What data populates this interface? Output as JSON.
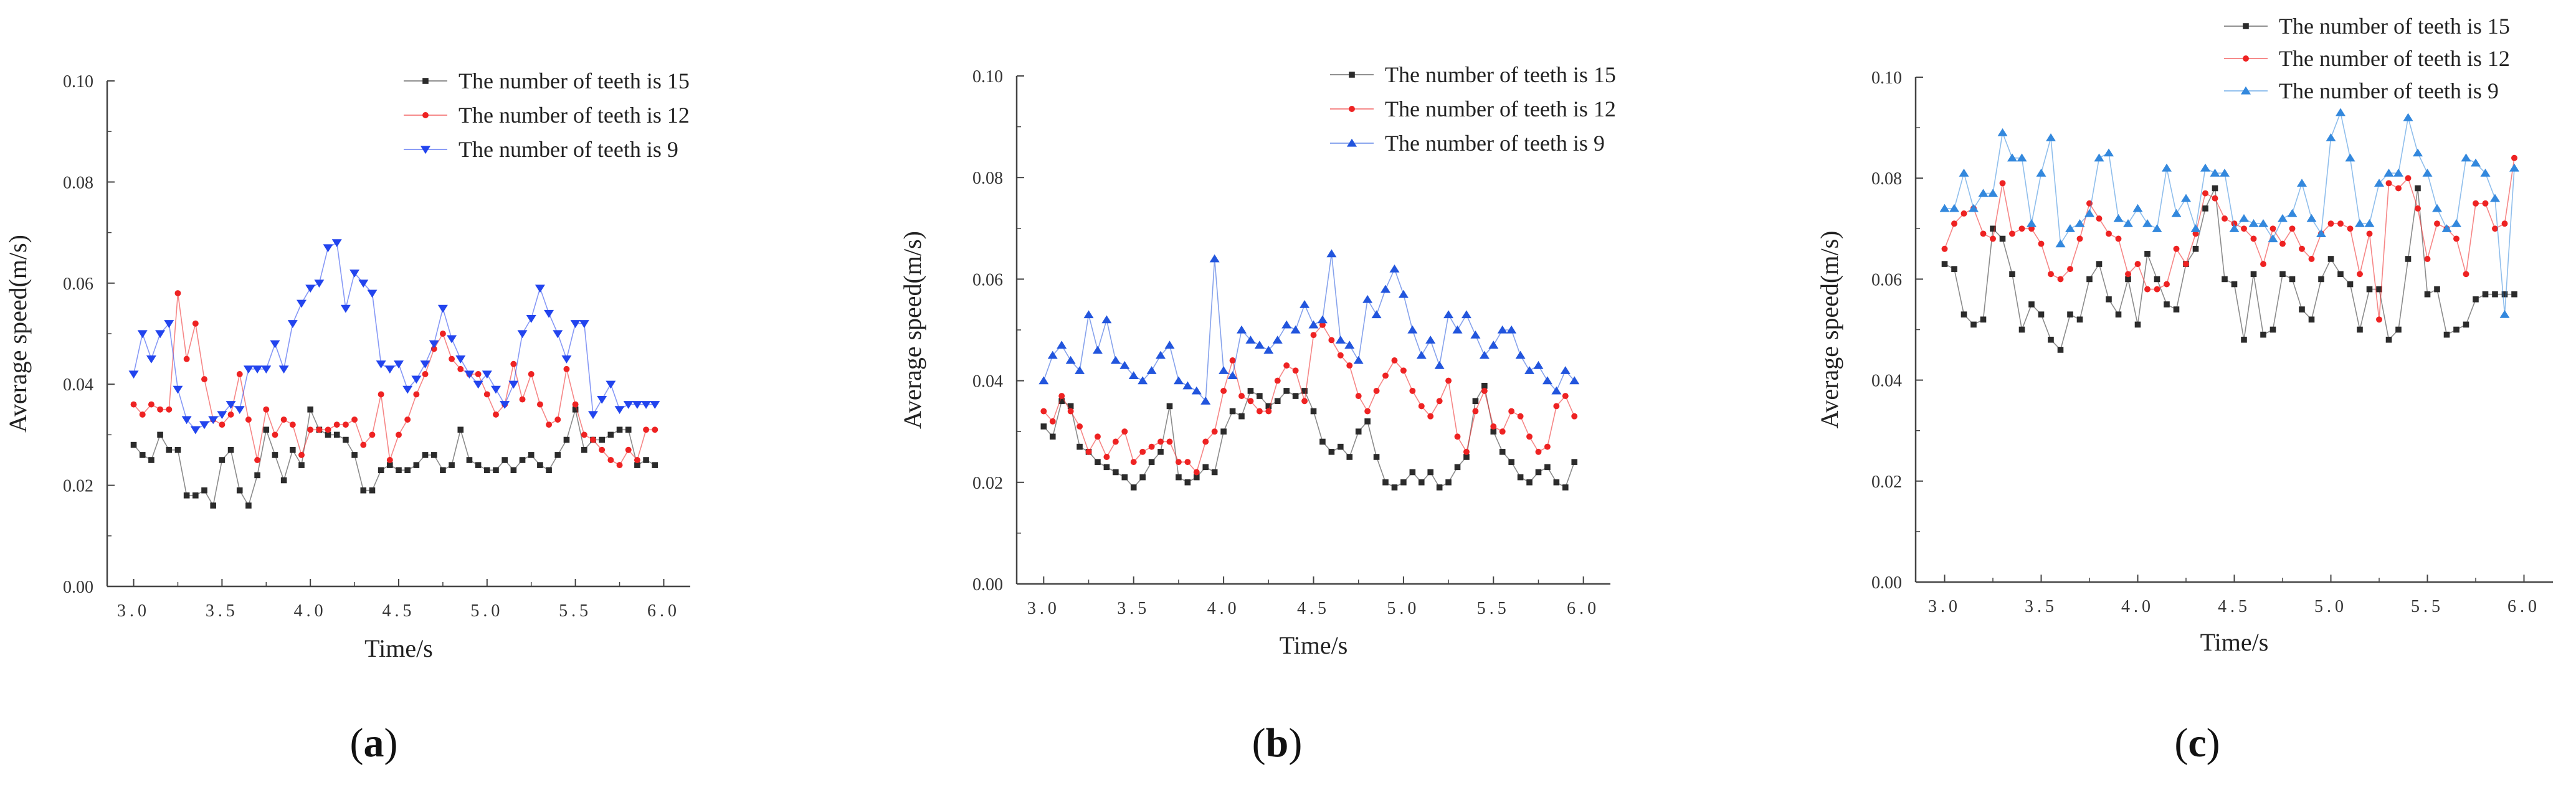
{
  "panels": [
    {
      "label": "a"
    },
    {
      "label": "b"
    },
    {
      "label": "c"
    }
  ],
  "chart_data": [
    {
      "type": "line",
      "xlabel": "Time/s",
      "ylabel": "Average speed(m/s)",
      "xlim": [
        2.85,
        6.15
      ],
      "ylim": [
        0,
        0.1
      ],
      "xticks": [
        "3.0",
        "3.5",
        "4.0",
        "4.5",
        "5.0",
        "5.5",
        "6.0"
      ],
      "yticks": [
        "0.00",
        "0.02",
        "0.04",
        "0.06",
        "0.08",
        "0.10"
      ],
      "legend_position": "top-right",
      "x": {
        "start": 3.0,
        "step": 0.05,
        "count": 60
      },
      "series": [
        {
          "name": "The number of teeth is 15",
          "color": "#2b2b2b",
          "marker": "square",
          "values": [
            0.028,
            0.026,
            0.025,
            0.03,
            0.027,
            0.027,
            0.018,
            0.018,
            0.019,
            0.016,
            0.025,
            0.027,
            0.019,
            0.016,
            0.022,
            0.031,
            0.026,
            0.021,
            0.027,
            0.024,
            0.035,
            0.031,
            0.03,
            0.03,
            0.029,
            0.026,
            0.019,
            0.019,
            0.023,
            0.024,
            0.023,
            0.023,
            0.024,
            0.026,
            0.026,
            0.023,
            0.024,
            0.031,
            0.025,
            0.024,
            0.023,
            0.023,
            0.025,
            0.023,
            0.025,
            0.026,
            0.024,
            0.023,
            0.026,
            0.029,
            0.035,
            0.027,
            0.029,
            0.029,
            0.03,
            0.031,
            0.031,
            0.024,
            0.025,
            0.024
          ]
        },
        {
          "name": "The number of teeth is 12",
          "color": "#ee2222",
          "marker": "circle",
          "values": [
            0.036,
            0.034,
            0.036,
            0.035,
            0.035,
            0.058,
            0.045,
            0.052,
            0.041,
            0.033,
            0.032,
            0.034,
            0.042,
            0.033,
            0.025,
            0.035,
            0.03,
            0.033,
            0.032,
            0.026,
            0.031,
            0.031,
            0.031,
            0.032,
            0.032,
            0.033,
            0.028,
            0.03,
            0.038,
            0.025,
            0.03,
            0.033,
            0.038,
            0.042,
            0.047,
            0.05,
            0.045,
            0.043,
            0.042,
            0.042,
            0.038,
            0.034,
            0.036,
            0.044,
            0.037,
            0.042,
            0.036,
            0.032,
            0.033,
            0.043,
            0.036,
            0.03,
            0.029,
            0.027,
            0.025,
            0.024,
            0.027,
            0.025,
            0.031,
            0.031
          ]
        },
        {
          "name": "The number of teeth is 9",
          "color": "#2244ee",
          "marker": "triangle-down",
          "values": [
            0.042,
            0.05,
            0.045,
            0.05,
            0.052,
            0.039,
            0.033,
            0.031,
            0.032,
            0.033,
            0.034,
            0.036,
            0.035,
            0.043,
            0.043,
            0.043,
            0.048,
            0.043,
            0.052,
            0.056,
            0.059,
            0.06,
            0.067,
            0.068,
            0.055,
            0.062,
            0.06,
            0.058,
            0.044,
            0.043,
            0.044,
            0.039,
            0.041,
            0.044,
            0.048,
            0.055,
            0.049,
            0.045,
            0.042,
            0.04,
            0.042,
            0.039,
            0.036,
            0.04,
            0.05,
            0.053,
            0.059,
            0.054,
            0.05,
            0.045,
            0.052,
            0.052,
            0.034,
            0.037,
            0.04,
            0.035,
            0.036,
            0.036,
            0.036,
            0.036
          ]
        }
      ]
    },
    {
      "type": "line",
      "xlabel": "Time/s",
      "ylabel": "Average speed(m/s)",
      "xlim": [
        2.85,
        6.15
      ],
      "ylim": [
        0,
        0.1
      ],
      "xticks": [
        "3.0",
        "3.5",
        "4.0",
        "4.5",
        "5.0",
        "5.5",
        "6.0"
      ],
      "yticks": [
        "0.00",
        "0.02",
        "0.04",
        "0.06",
        "0.08",
        "0.10"
      ],
      "legend_position": "top-right",
      "x": {
        "start": 3.0,
        "step": 0.05,
        "count": 60
      },
      "series": [
        {
          "name": "The number of teeth is 15",
          "color": "#2b2b2b",
          "marker": "square",
          "values": [
            0.031,
            0.029,
            0.036,
            0.035,
            0.027,
            0.026,
            0.024,
            0.023,
            0.022,
            0.021,
            0.019,
            0.021,
            0.024,
            0.026,
            0.035,
            0.021,
            0.02,
            0.021,
            0.023,
            0.022,
            0.03,
            0.034,
            0.033,
            0.038,
            0.037,
            0.035,
            0.036,
            0.038,
            0.037,
            0.038,
            0.034,
            0.028,
            0.026,
            0.027,
            0.025,
            0.03,
            0.032,
            0.025,
            0.02,
            0.019,
            0.02,
            0.022,
            0.02,
            0.022,
            0.019,
            0.02,
            0.023,
            0.025,
            0.036,
            0.039,
            0.03,
            0.026,
            0.024,
            0.021,
            0.02,
            0.022,
            0.023,
            0.02,
            0.019,
            0.024
          ]
        },
        {
          "name": "The number of teeth is 12",
          "color": "#ee2222",
          "marker": "circle",
          "values": [
            0.034,
            0.032,
            0.037,
            0.034,
            0.031,
            0.026,
            0.029,
            0.025,
            0.028,
            0.03,
            0.024,
            0.026,
            0.027,
            0.028,
            0.028,
            0.024,
            0.024,
            0.022,
            0.028,
            0.03,
            0.038,
            0.044,
            0.037,
            0.036,
            0.034,
            0.034,
            0.04,
            0.043,
            0.042,
            0.036,
            0.049,
            0.051,
            0.048,
            0.045,
            0.043,
            0.037,
            0.034,
            0.038,
            0.041,
            0.044,
            0.042,
            0.038,
            0.035,
            0.033,
            0.036,
            0.04,
            0.029,
            0.026,
            0.034,
            0.038,
            0.031,
            0.03,
            0.034,
            0.033,
            0.029,
            0.026,
            0.027,
            0.035,
            0.037,
            0.033
          ]
        },
        {
          "name": "The number of teeth is 9",
          "color": "#2255dd",
          "marker": "triangle-up",
          "values": [
            0.04,
            0.045,
            0.047,
            0.044,
            0.042,
            0.053,
            0.046,
            0.052,
            0.044,
            0.043,
            0.041,
            0.04,
            0.042,
            0.045,
            0.047,
            0.04,
            0.039,
            0.038,
            0.036,
            0.064,
            0.042,
            0.041,
            0.05,
            0.048,
            0.047,
            0.046,
            0.048,
            0.051,
            0.05,
            0.055,
            0.051,
            0.052,
            0.065,
            0.048,
            0.047,
            0.044,
            0.056,
            0.053,
            0.058,
            0.062,
            0.057,
            0.05,
            0.045,
            0.048,
            0.043,
            0.053,
            0.05,
            0.053,
            0.049,
            0.045,
            0.047,
            0.05,
            0.05,
            0.045,
            0.042,
            0.043,
            0.04,
            0.038,
            0.042,
            0.04
          ]
        }
      ]
    },
    {
      "type": "line",
      "xlabel": "Time/s",
      "ylabel": "Average speed(m/s)",
      "xlim": [
        2.85,
        6.15
      ],
      "ylim": [
        0,
        0.1
      ],
      "xticks": [
        "3.0",
        "3.5",
        "4.0",
        "4.5",
        "5.0",
        "5.5",
        "6.0"
      ],
      "yticks": [
        "0.00",
        "0.02",
        "0.04",
        "0.06",
        "0.08",
        "0.10"
      ],
      "legend_position": "top-right",
      "x": {
        "start": 3.0,
        "step": 0.05,
        "count": 60
      },
      "series": [
        {
          "name": "The number of teeth is 15",
          "color": "#2b2b2b",
          "marker": "square",
          "values": [
            0.063,
            0.062,
            0.053,
            0.051,
            0.052,
            0.07,
            0.068,
            0.061,
            0.05,
            0.055,
            0.053,
            0.048,
            0.046,
            0.053,
            0.052,
            0.06,
            0.063,
            0.056,
            0.053,
            0.06,
            0.051,
            0.065,
            0.06,
            0.055,
            0.054,
            0.063,
            0.066,
            0.074,
            0.078,
            0.06,
            0.059,
            0.048,
            0.061,
            0.049,
            0.05,
            0.061,
            0.06,
            0.054,
            0.052,
            0.06,
            0.064,
            0.061,
            0.059,
            0.05,
            0.058,
            0.058,
            0.048,
            0.05,
            0.064,
            0.078,
            0.057,
            0.058,
            0.049,
            0.05,
            0.051,
            0.056,
            0.057,
            0.057,
            0.057,
            0.057
          ]
        },
        {
          "name": "The number of teeth is 12",
          "color": "#ee2222",
          "marker": "circle",
          "values": [
            0.066,
            0.071,
            0.073,
            0.074,
            0.069,
            0.068,
            0.079,
            0.069,
            0.07,
            0.07,
            0.067,
            0.061,
            0.06,
            0.062,
            0.068,
            0.075,
            0.072,
            0.069,
            0.068,
            0.061,
            0.063,
            0.058,
            0.058,
            0.059,
            0.066,
            0.063,
            0.069,
            0.077,
            0.076,
            0.072,
            0.071,
            0.07,
            0.068,
            0.063,
            0.07,
            0.067,
            0.07,
            0.066,
            0.064,
            0.069,
            0.071,
            0.071,
            0.07,
            0.061,
            0.069,
            0.052,
            0.079,
            0.078,
            0.08,
            0.074,
            0.064,
            0.071,
            0.07,
            0.068,
            0.061,
            0.075,
            0.075,
            0.07,
            0.071,
            0.084
          ]
        },
        {
          "name": "The number of teeth is 9",
          "color": "#3388dd",
          "marker": "triangle-up",
          "values": [
            0.074,
            0.074,
            0.081,
            0.074,
            0.077,
            0.077,
            0.089,
            0.084,
            0.084,
            0.071,
            0.081,
            0.088,
            0.067,
            0.07,
            0.071,
            0.073,
            0.084,
            0.085,
            0.072,
            0.071,
            0.074,
            0.071,
            0.07,
            0.082,
            0.073,
            0.076,
            0.07,
            0.082,
            0.081,
            0.081,
            0.07,
            0.072,
            0.071,
            0.071,
            0.068,
            0.072,
            0.073,
            0.079,
            0.072,
            0.069,
            0.088,
            0.093,
            0.084,
            0.071,
            0.071,
            0.079,
            0.081,
            0.081,
            0.092,
            0.085,
            0.081,
            0.074,
            0.07,
            0.071,
            0.084,
            0.083,
            0.081,
            0.076,
            0.053,
            0.082
          ]
        }
      ]
    }
  ]
}
